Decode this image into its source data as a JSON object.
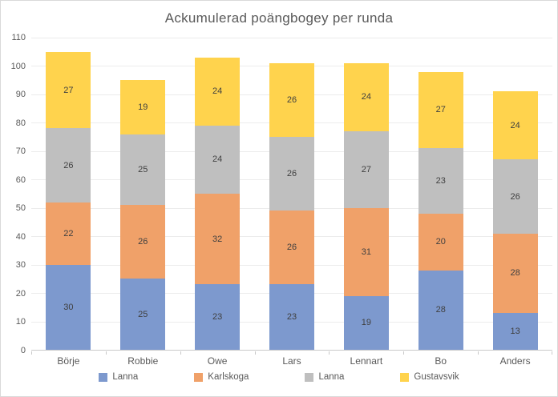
{
  "chart_data": {
    "type": "bar",
    "stacked": true,
    "title": "Ackumulerad poängbogey per runda",
    "categories": [
      "Börje",
      "Robbie",
      "Owe",
      "Lars",
      "Lennart",
      "Bo",
      "Anders"
    ],
    "series": [
      {
        "name": "Lanna",
        "color": "#7d99ce",
        "values": [
          30,
          25,
          23,
          23,
          19,
          28,
          13
        ]
      },
      {
        "name": "Karlskoga",
        "color": "#f0a169",
        "values": [
          22,
          26,
          32,
          26,
          31,
          20,
          28
        ]
      },
      {
        "name": "Lanna",
        "color": "#bfbfbf",
        "values": [
          26,
          25,
          24,
          26,
          27,
          23,
          26
        ]
      },
      {
        "name": "Gustavsvik",
        "color": "#ffd34d",
        "values": [
          27,
          19,
          24,
          26,
          24,
          27,
          24
        ]
      }
    ],
    "totals": [
      105,
      95,
      103,
      101,
      101,
      98,
      91
    ],
    "xlabel": "",
    "ylabel": "",
    "ylim": [
      0,
      110
    ],
    "ytick_step": 10,
    "grid": true,
    "legend_position": "bottom"
  }
}
